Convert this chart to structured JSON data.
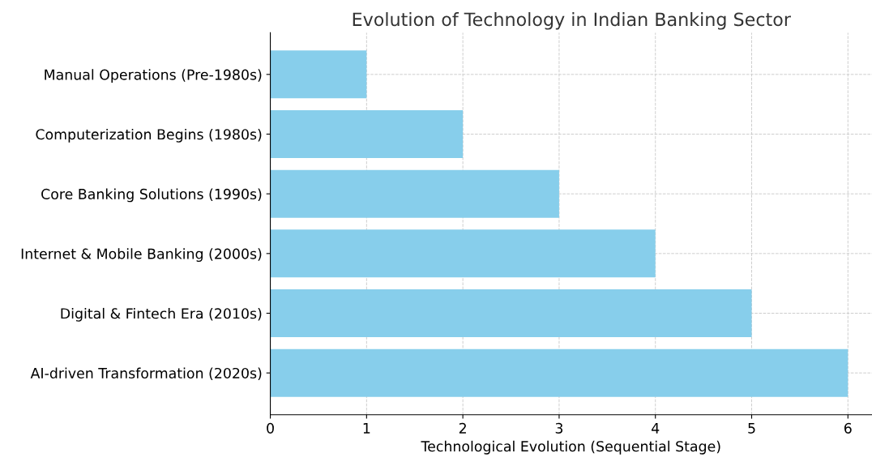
{
  "chart_data": {
    "type": "bar",
    "orientation": "horizontal",
    "title": "Evolution of Technology in Indian Banking Sector",
    "xlabel": "Technological Evolution (Sequential Stage)",
    "categories": [
      "Manual Operations (Pre-1980s)",
      "Computerization Begins (1980s)",
      "Core Banking Solutions (1990s)",
      "Internet & Mobile Banking (2000s)",
      "Digital & Fintech Era (2010s)",
      "AI-driven Transformation (2020s)"
    ],
    "values": [
      1,
      2,
      3,
      4,
      5,
      6
    ],
    "color": "#87ceeb",
    "xlim": [
      0,
      6.25
    ],
    "xticks": [
      0,
      1,
      2,
      3,
      4,
      5,
      6
    ],
    "grid": true
  }
}
